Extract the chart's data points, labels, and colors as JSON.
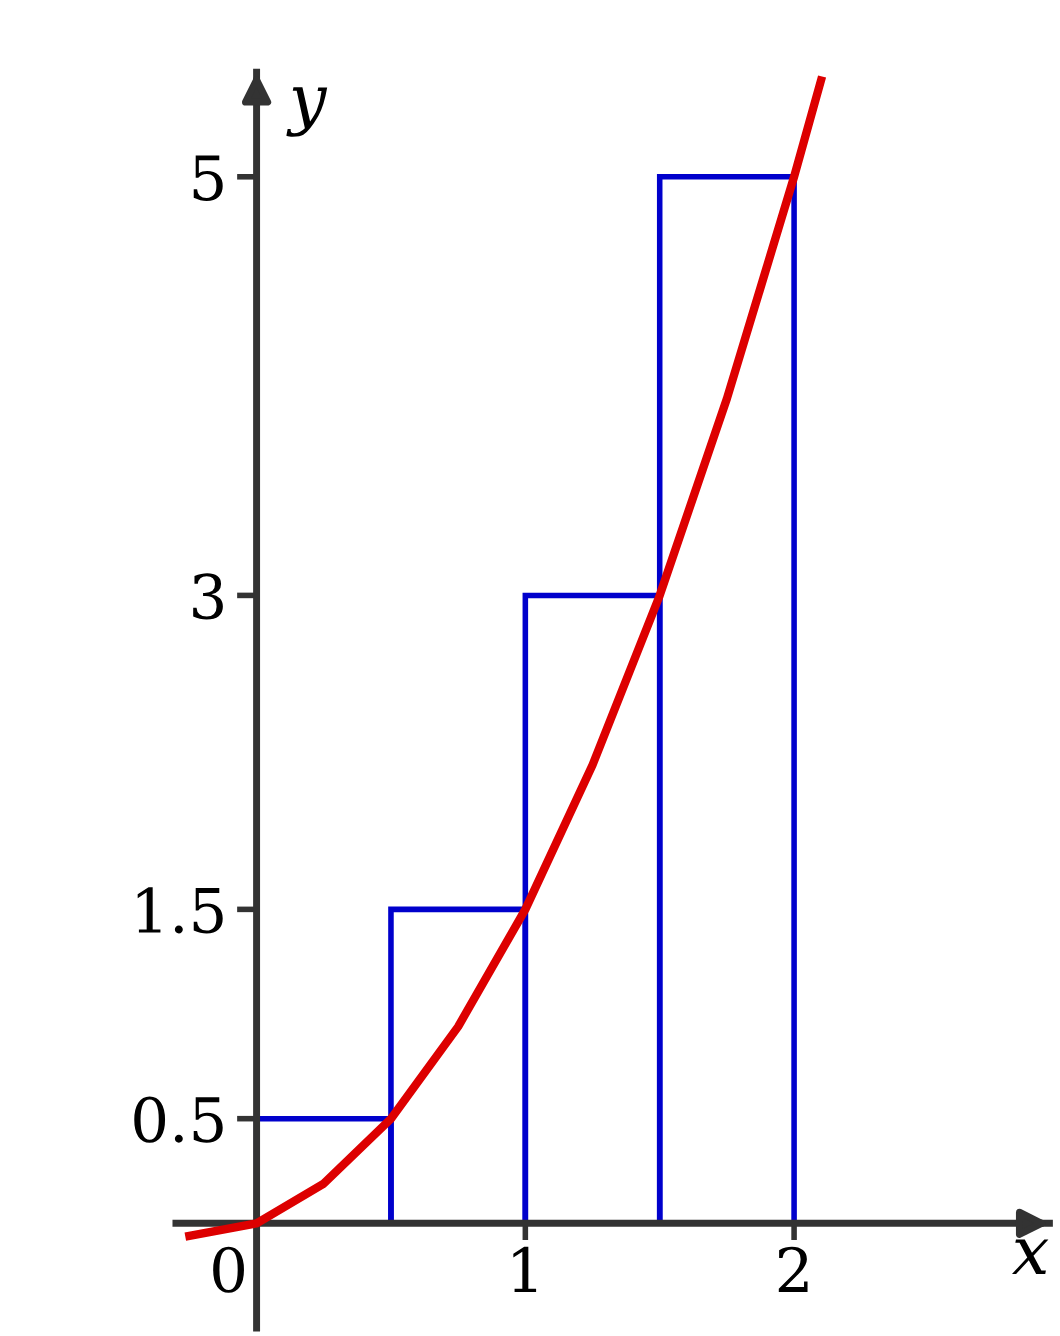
{
  "chart_data": {
    "type": "histogram",
    "xlabel": "x",
    "ylabel": "y",
    "xlim": [
      -0.3,
      2.95
    ],
    "ylim": [
      -0.5,
      5.5
    ],
    "xticks": [
      0,
      1,
      2
    ],
    "yticks": [
      0.5,
      1.5,
      3,
      5
    ],
    "grid": false,
    "series": [
      {
        "color": "#0000cc",
        "bins": [
          0,
          0.5,
          1,
          1.5,
          2
        ],
        "values": [
          0.5,
          1.5,
          3,
          5
        ]
      },
      {
        "type": "line",
        "color": "#dd0000",
        "x": [
          -0.25,
          0,
          0.25,
          0.5,
          0.75,
          1,
          1.25,
          1.5,
          1.75,
          2,
          2.1
        ],
        "values": [
          -0.06,
          0,
          0.19,
          0.5,
          0.94,
          1.5,
          2.19,
          3,
          3.94,
          5,
          5.46
        ]
      }
    ]
  }
}
